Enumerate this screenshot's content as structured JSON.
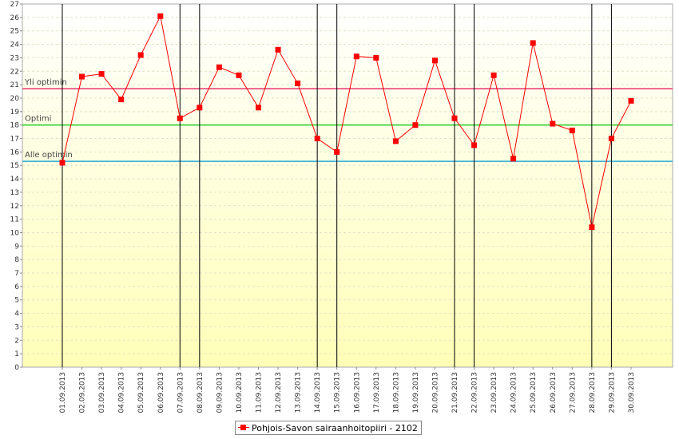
{
  "chart_data": {
    "type": "line",
    "title": "",
    "xlabel": "",
    "ylabel": "",
    "ylim": [
      0,
      27
    ],
    "y_ticks": [
      0,
      1,
      2,
      3,
      4,
      5,
      6,
      7,
      8,
      9,
      10,
      11,
      12,
      13,
      14,
      15,
      16,
      17,
      18,
      19,
      20,
      21,
      22,
      23,
      24,
      25,
      26,
      27
    ],
    "grid": "horizontal dashed",
    "categories": [
      "01.09.2013",
      "02.09.2013",
      "03.09.2013",
      "04.09.2013",
      "05.09.2013",
      "06.09.2013",
      "07.09.2013",
      "08.09.2013",
      "09.09.2013",
      "10.09.2013",
      "11.09.2013",
      "12.09.2013",
      "13.09.2013",
      "14.09.2013",
      "15.09.2013",
      "16.09.2013",
      "17.09.2013",
      "18.09.2013",
      "19.09.2013",
      "20.09.2013",
      "21.09.2013",
      "22.09.2013",
      "23.09.2013",
      "24.09.2013",
      "25.09.2013",
      "26.09.2013",
      "27.09.2013",
      "28.09.2013",
      "29.09.2013",
      "30.09.2013"
    ],
    "series": [
      {
        "name": "Pohjois-Savon sairaanhoitopiiri - 2102",
        "color": "#ff0000",
        "values": [
          15.2,
          21.6,
          21.8,
          19.9,
          23.2,
          26.1,
          18.5,
          19.3,
          22.3,
          21.7,
          19.3,
          23.6,
          21.1,
          17.0,
          16.0,
          23.1,
          23.0,
          16.8,
          18.0,
          22.8,
          18.5,
          16.5,
          21.7,
          15.5,
          24.1,
          18.1,
          17.6,
          10.4,
          17.0,
          19.8
        ]
      }
    ],
    "reference_lines": [
      {
        "label": "Yli optimin",
        "value": 20.7,
        "color": "#e8336d"
      },
      {
        "label": "Optimi",
        "value": 18.0,
        "color": "#22cc22"
      },
      {
        "label": "Alle optimin",
        "value": 15.3,
        "color": "#22a9d8"
      }
    ],
    "marker_lines_at": [
      "01.09.2013",
      "07.09.2013",
      "08.09.2013",
      "14.09.2013",
      "15.09.2013",
      "21.09.2013",
      "22.09.2013",
      "28.09.2013",
      "29.09.2013"
    ],
    "legend": {
      "position": "bottom",
      "label": "Pohjois-Savon sairaanhoitopiiri - 2102"
    },
    "background_gradient": [
      "#ffffff",
      "#ffffb8"
    ]
  }
}
